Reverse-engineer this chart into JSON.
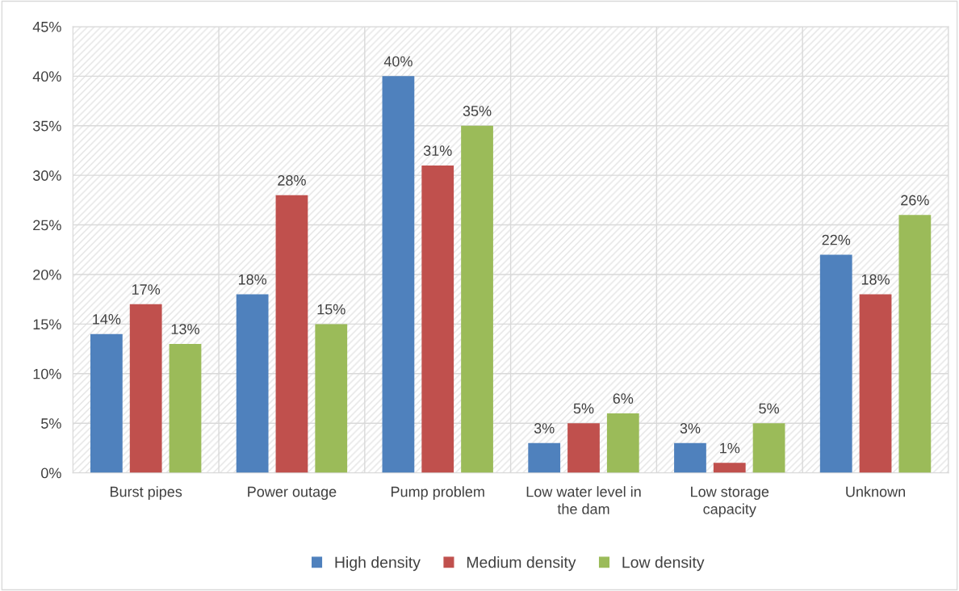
{
  "chart_data": {
    "type": "bar",
    "categories": [
      "Burst pipes",
      "Power outage",
      "Pump problem",
      "Low water level in the dam",
      "Low storage capacity",
      "Unknown"
    ],
    "series": [
      {
        "name": "High density",
        "color": "#4f81bd",
        "values": [
          14,
          18,
          40,
          3,
          3,
          22
        ],
        "value_labels": [
          "14%",
          "18%",
          "40%",
          "3%",
          "3%",
          "22%"
        ]
      },
      {
        "name": "Medium density",
        "color": "#c0504d",
        "values": [
          17,
          28,
          31,
          5,
          1,
          18
        ],
        "value_labels": [
          "17%",
          "28%",
          "31%",
          "5%",
          "1%",
          "18%"
        ]
      },
      {
        "name": "Low density",
        "color": "#9bbb59",
        "values": [
          13,
          15,
          35,
          6,
          5,
          26
        ],
        "value_labels": [
          "13%",
          "15%",
          "35%",
          "6%",
          "5%",
          "26%"
        ]
      }
    ],
    "ylim": [
      0,
      45
    ],
    "yticks": [
      {
        "value": 0,
        "label": "0%"
      },
      {
        "value": 5,
        "label": "5%"
      },
      {
        "value": 10,
        "label": "10%"
      },
      {
        "value": 15,
        "label": "15%"
      },
      {
        "value": 20,
        "label": "20%"
      },
      {
        "value": 25,
        "label": "25%"
      },
      {
        "value": 30,
        "label": "30%"
      },
      {
        "value": 35,
        "label": "35%"
      },
      {
        "value": 40,
        "label": "40%"
      },
      {
        "value": 45,
        "label": "45%"
      }
    ],
    "grid": true,
    "legend": "bottom"
  }
}
